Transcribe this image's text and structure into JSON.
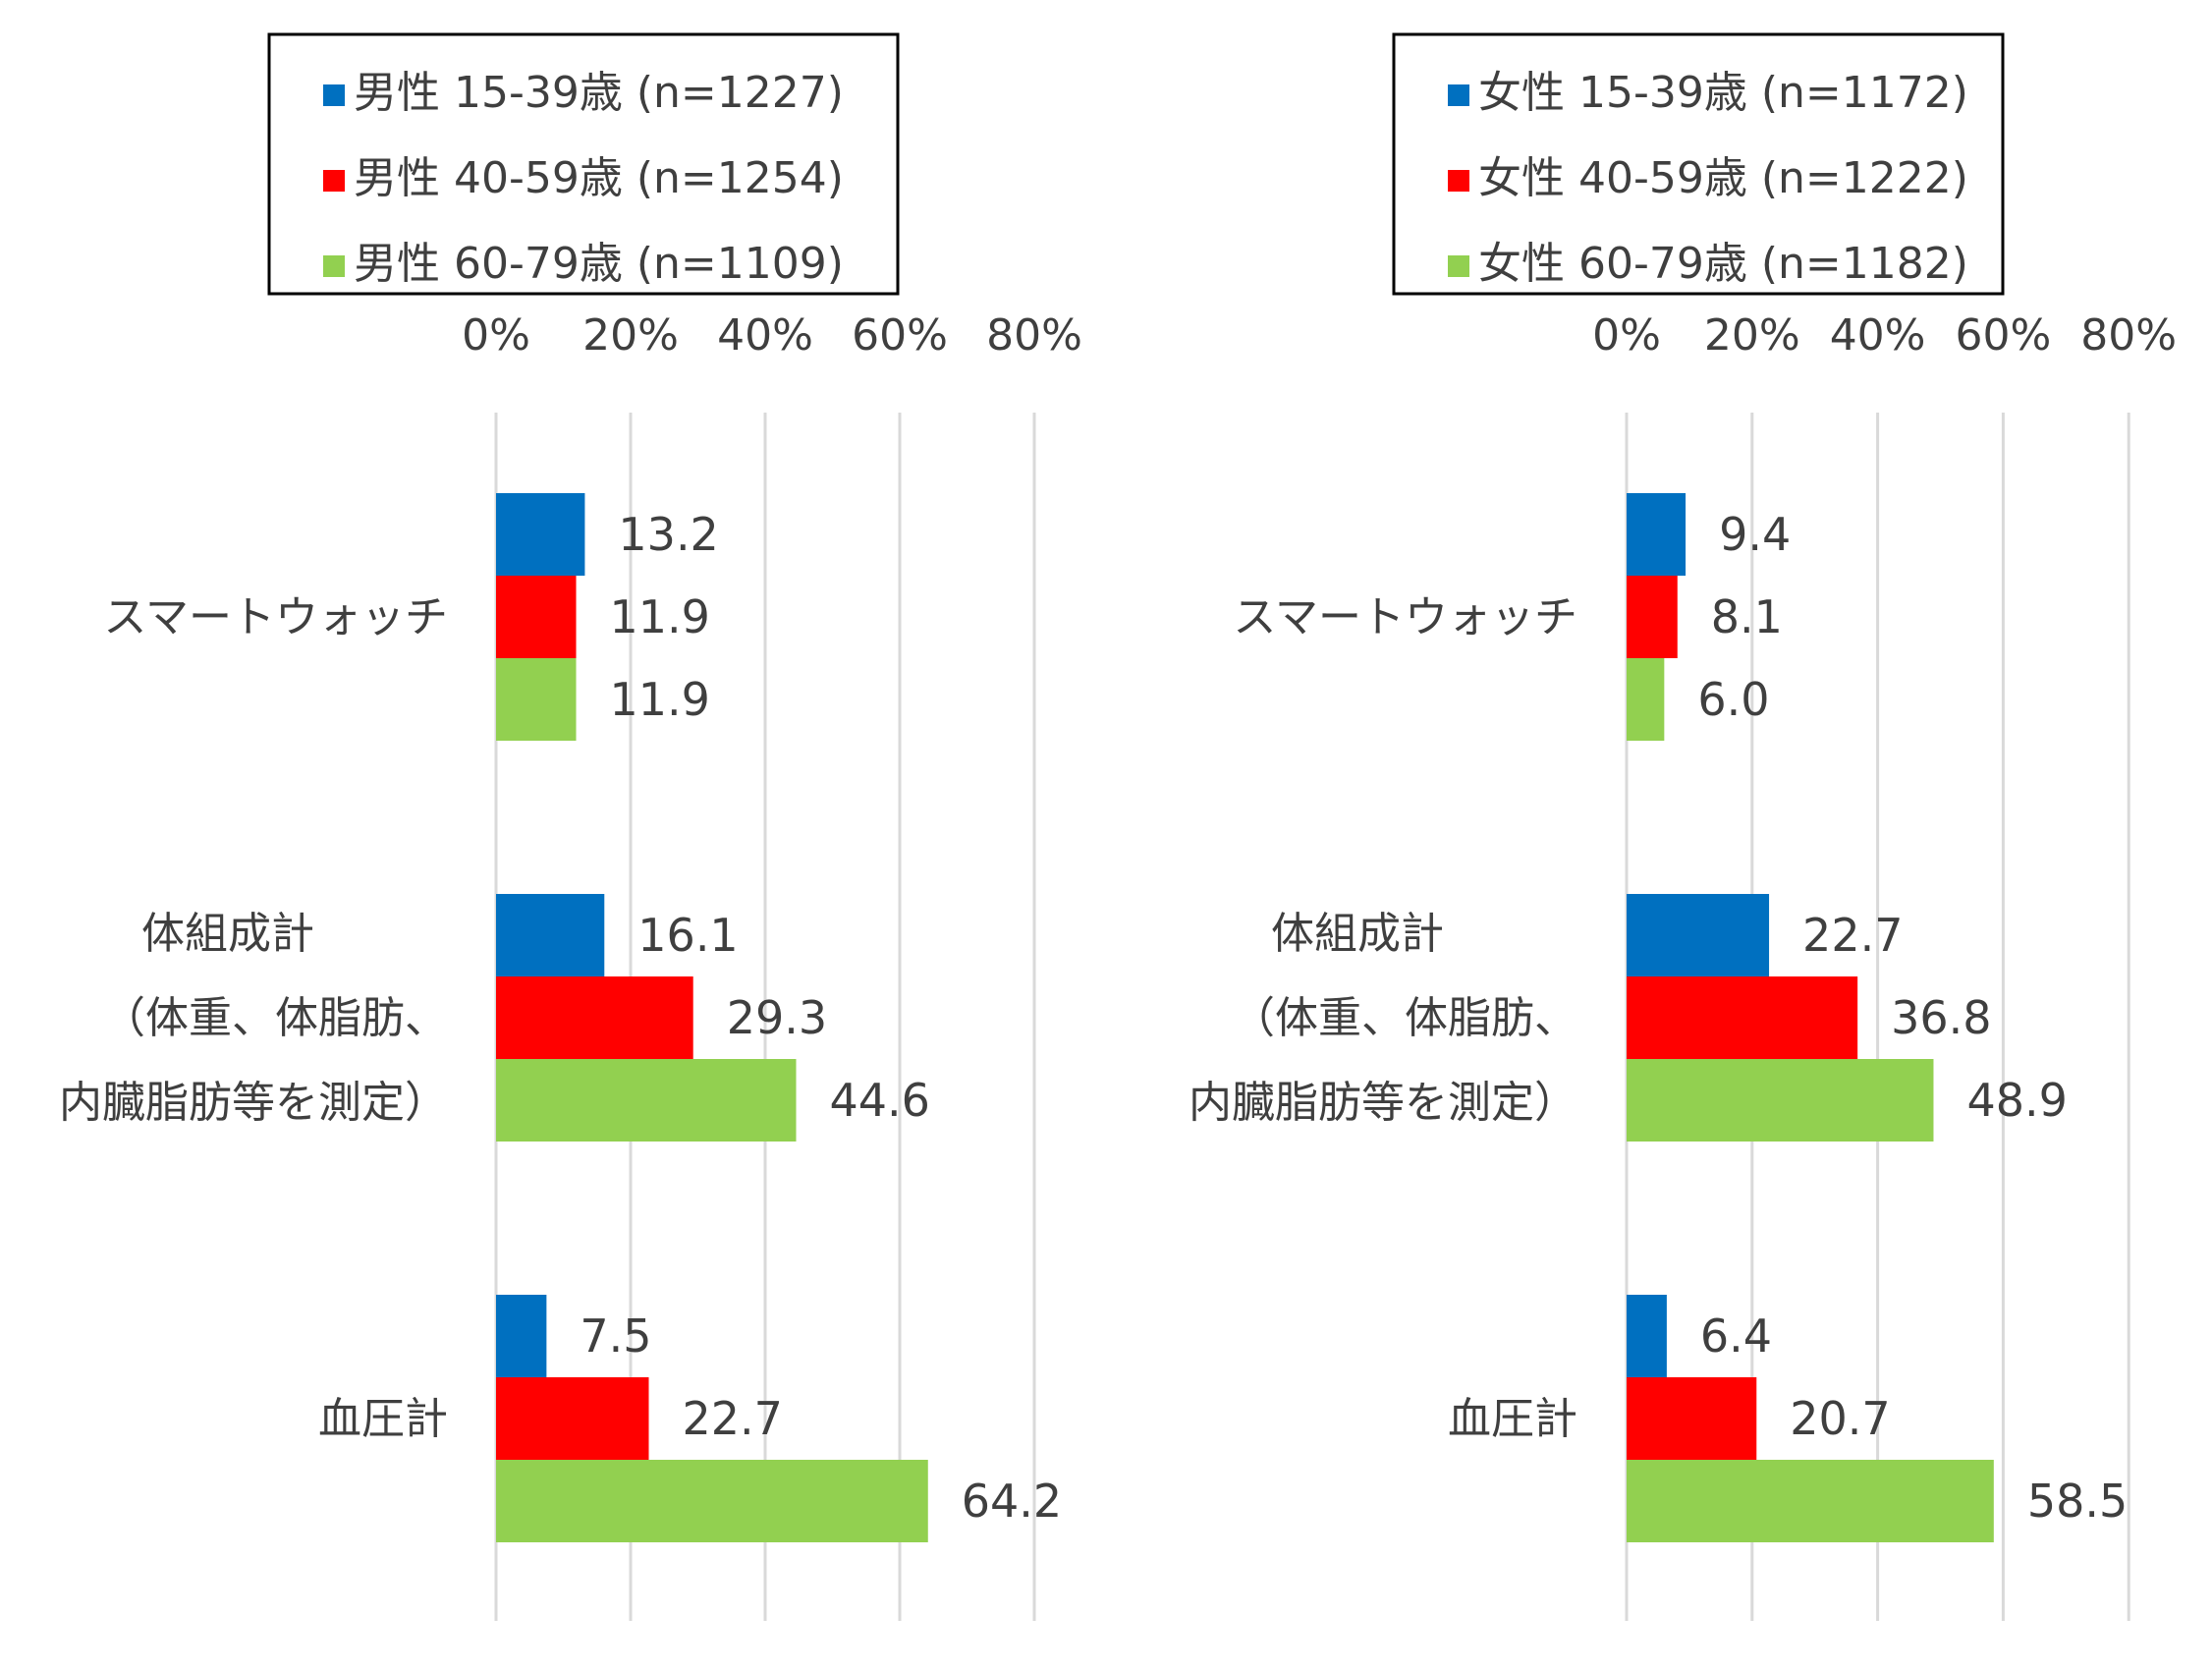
{
  "colors": {
    "series": [
      "#0070c0",
      "#ff0000",
      "#92d050"
    ],
    "grid": "#d9d9d9",
    "text": "#3f3f3f"
  },
  "chart_data": [
    {
      "type": "bar",
      "orientation": "horizontal",
      "title": "",
      "xlabel": "",
      "ylabel": "",
      "xlim": [
        0,
        80
      ],
      "ticks": [
        "0%",
        "20%",
        "40%",
        "60%",
        "80%"
      ],
      "tick_values": [
        0,
        20,
        40,
        60,
        80
      ],
      "grid": true,
      "legend_position": "top",
      "categories": [
        {
          "lines": [
            "スマートウォッチ"
          ]
        },
        {
          "lines": [
            "体組成計",
            "（体重、体脂肪、",
            "内臓脂肪等を測定）"
          ]
        },
        {
          "lines": [
            "血圧計"
          ]
        }
      ],
      "series": [
        {
          "name": "男性 15-39歳 (n=1227)",
          "values": [
            13.2,
            16.1,
            7.5
          ],
          "labels": [
            "13.2",
            "16.1",
            "7.5"
          ]
        },
        {
          "name": "男性 40-59歳 (n=1254)",
          "values": [
            11.9,
            29.3,
            22.7
          ],
          "labels": [
            "11.9",
            "29.3",
            "22.7"
          ]
        },
        {
          "name": "男性 60-79歳 (n=1109)",
          "values": [
            11.9,
            44.6,
            64.2
          ],
          "labels": [
            "11.9",
            "44.6",
            "64.2"
          ]
        }
      ]
    },
    {
      "type": "bar",
      "orientation": "horizontal",
      "title": "",
      "xlabel": "",
      "ylabel": "",
      "xlim": [
        0,
        80
      ],
      "ticks": [
        "0%",
        "20%",
        "40%",
        "60%",
        "80%"
      ],
      "tick_values": [
        0,
        20,
        40,
        60,
        80
      ],
      "grid": true,
      "legend_position": "top",
      "categories": [
        {
          "lines": [
            "スマートウォッチ"
          ]
        },
        {
          "lines": [
            "体組成計",
            "（体重、体脂肪、",
            "内臓脂肪等を測定）"
          ]
        },
        {
          "lines": [
            "血圧計"
          ]
        }
      ],
      "series": [
        {
          "name": "女性 15-39歳 (n=1172)",
          "values": [
            9.4,
            22.7,
            6.4
          ],
          "labels": [
            "9.4",
            "22.7",
            "6.4"
          ]
        },
        {
          "name": "女性 40-59歳 (n=1222)",
          "values": [
            8.1,
            36.8,
            20.7
          ],
          "labels": [
            "8.1",
            "36.8",
            "20.7"
          ]
        },
        {
          "name": "女性 60-79歳 (n=1182)",
          "values": [
            6.0,
            48.9,
            58.5
          ],
          "labels": [
            "6.0",
            "48.9",
            "58.5"
          ]
        }
      ]
    }
  ]
}
